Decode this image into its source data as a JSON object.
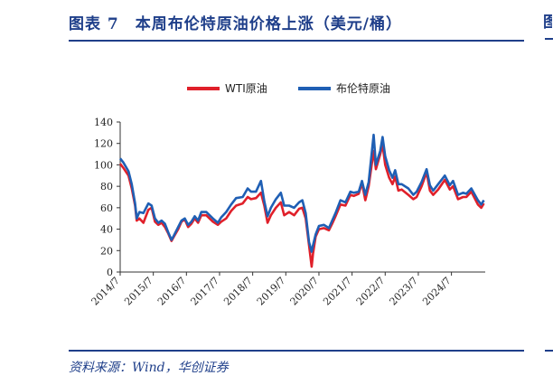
{
  "header": {
    "title": "图表 7　本周布伦特原油价格上涨（美元/桶）",
    "edge_glyph": "图"
  },
  "footer": {
    "source": "资料来源：Wind，华创证券"
  },
  "chart_data": {
    "type": "line",
    "title": "",
    "xlabel": "",
    "ylabel": "",
    "ylim": [
      0,
      140
    ],
    "yticks": [
      0,
      20,
      40,
      60,
      80,
      100,
      120,
      140
    ],
    "xlim": [
      2014.5,
      2025.52
    ],
    "xticks": [
      {
        "x": 2014.5,
        "label": "2014/7"
      },
      {
        "x": 2015.5,
        "label": "2015/7"
      },
      {
        "x": 2016.5,
        "label": "2016/7"
      },
      {
        "x": 2017.5,
        "label": "2017/7"
      },
      {
        "x": 2018.5,
        "label": "2018/7"
      },
      {
        "x": 2019.5,
        "label": "2019/7"
      },
      {
        "x": 2020.5,
        "label": "2020/7"
      },
      {
        "x": 2021.5,
        "label": "2021/7"
      },
      {
        "x": 2022.5,
        "label": "2022/7"
      },
      {
        "x": 2023.5,
        "label": "2023/7"
      },
      {
        "x": 2024.5,
        "label": "2024/7"
      }
    ],
    "grid": false,
    "legend_position": "top-center",
    "series": [
      {
        "name": "WTI原油",
        "color": "#e0202a",
        "points": [
          [
            2014.5,
            101
          ],
          [
            2014.6,
            97
          ],
          [
            2014.75,
            90
          ],
          [
            2014.85,
            78
          ],
          [
            2014.95,
            62
          ],
          [
            2015.0,
            48
          ],
          [
            2015.08,
            50
          ],
          [
            2015.2,
            46
          ],
          [
            2015.35,
            58
          ],
          [
            2015.45,
            60
          ],
          [
            2015.55,
            47
          ],
          [
            2015.65,
            44
          ],
          [
            2015.75,
            46
          ],
          [
            2015.85,
            42
          ],
          [
            2015.95,
            36
          ],
          [
            2016.05,
            29
          ],
          [
            2016.12,
            33
          ],
          [
            2016.25,
            40
          ],
          [
            2016.35,
            47
          ],
          [
            2016.45,
            49
          ],
          [
            2016.55,
            42
          ],
          [
            2016.65,
            45
          ],
          [
            2016.75,
            50
          ],
          [
            2016.85,
            46
          ],
          [
            2016.95,
            53
          ],
          [
            2017.1,
            53
          ],
          [
            2017.3,
            47
          ],
          [
            2017.45,
            44
          ],
          [
            2017.55,
            47
          ],
          [
            2017.7,
            50
          ],
          [
            2017.85,
            57
          ],
          [
            2018.0,
            62
          ],
          [
            2018.2,
            64
          ],
          [
            2018.35,
            70
          ],
          [
            2018.45,
            68
          ],
          [
            2018.6,
            69
          ],
          [
            2018.75,
            74
          ],
          [
            2018.85,
            62
          ],
          [
            2018.95,
            46
          ],
          [
            2019.05,
            53
          ],
          [
            2019.2,
            60
          ],
          [
            2019.35,
            65
          ],
          [
            2019.45,
            53
          ],
          [
            2019.6,
            56
          ],
          [
            2019.75,
            53
          ],
          [
            2019.9,
            59
          ],
          [
            2020.0,
            60
          ],
          [
            2020.1,
            50
          ],
          [
            2020.2,
            25
          ],
          [
            2020.28,
            5
          ],
          [
            2020.32,
            17
          ],
          [
            2020.4,
            33
          ],
          [
            2020.5,
            40
          ],
          [
            2020.65,
            41
          ],
          [
            2020.8,
            39
          ],
          [
            2020.9,
            45
          ],
          [
            2021.0,
            52
          ],
          [
            2021.15,
            63
          ],
          [
            2021.3,
            62
          ],
          [
            2021.45,
            72
          ],
          [
            2021.55,
            71
          ],
          [
            2021.7,
            73
          ],
          [
            2021.8,
            83
          ],
          [
            2021.9,
            67
          ],
          [
            2022.0,
            80
          ],
          [
            2022.15,
            113
          ],
          [
            2022.22,
            96
          ],
          [
            2022.35,
            110
          ],
          [
            2022.42,
            119
          ],
          [
            2022.5,
            100
          ],
          [
            2022.62,
            88
          ],
          [
            2022.72,
            82
          ],
          [
            2022.8,
            89
          ],
          [
            2022.9,
            76
          ],
          [
            2023.0,
            77
          ],
          [
            2023.2,
            72
          ],
          [
            2023.35,
            68
          ],
          [
            2023.45,
            70
          ],
          [
            2023.6,
            80
          ],
          [
            2023.75,
            93
          ],
          [
            2023.85,
            76
          ],
          [
            2023.95,
            72
          ],
          [
            2024.1,
            77
          ],
          [
            2024.3,
            86
          ],
          [
            2024.45,
            77
          ],
          [
            2024.55,
            80
          ],
          [
            2024.7,
            68
          ],
          [
            2024.85,
            70
          ],
          [
            2024.95,
            70
          ],
          [
            2025.1,
            75
          ],
          [
            2025.3,
            63
          ],
          [
            2025.4,
            60
          ],
          [
            2025.48,
            64
          ]
        ]
      },
      {
        "name": "布伦特原油",
        "color": "#1f5fb4",
        "points": [
          [
            2014.5,
            106
          ],
          [
            2014.6,
            102
          ],
          [
            2014.75,
            94
          ],
          [
            2014.85,
            82
          ],
          [
            2014.95,
            64
          ],
          [
            2015.0,
            50
          ],
          [
            2015.08,
            56
          ],
          [
            2015.2,
            55
          ],
          [
            2015.35,
            64
          ],
          [
            2015.45,
            62
          ],
          [
            2015.55,
            50
          ],
          [
            2015.65,
            46
          ],
          [
            2015.75,
            48
          ],
          [
            2015.85,
            45
          ],
          [
            2015.95,
            37
          ],
          [
            2016.05,
            30
          ],
          [
            2016.12,
            34
          ],
          [
            2016.25,
            42
          ],
          [
            2016.35,
            48
          ],
          [
            2016.45,
            50
          ],
          [
            2016.55,
            44
          ],
          [
            2016.65,
            47
          ],
          [
            2016.75,
            52
          ],
          [
            2016.85,
            48
          ],
          [
            2016.95,
            56
          ],
          [
            2017.1,
            56
          ],
          [
            2017.3,
            50
          ],
          [
            2017.45,
            46
          ],
          [
            2017.55,
            51
          ],
          [
            2017.7,
            56
          ],
          [
            2017.85,
            63
          ],
          [
            2018.0,
            69
          ],
          [
            2018.2,
            70
          ],
          [
            2018.35,
            78
          ],
          [
            2018.45,
            75
          ],
          [
            2018.6,
            75
          ],
          [
            2018.75,
            85
          ],
          [
            2018.85,
            66
          ],
          [
            2018.95,
            52
          ],
          [
            2019.05,
            60
          ],
          [
            2019.2,
            68
          ],
          [
            2019.35,
            74
          ],
          [
            2019.45,
            62
          ],
          [
            2019.6,
            62
          ],
          [
            2019.75,
            60
          ],
          [
            2019.9,
            65
          ],
          [
            2020.0,
            67
          ],
          [
            2020.1,
            55
          ],
          [
            2020.2,
            28
          ],
          [
            2020.28,
            19
          ],
          [
            2020.32,
            25
          ],
          [
            2020.4,
            35
          ],
          [
            2020.5,
            43
          ],
          [
            2020.65,
            44
          ],
          [
            2020.8,
            41
          ],
          [
            2020.9,
            48
          ],
          [
            2021.0,
            55
          ],
          [
            2021.15,
            67
          ],
          [
            2021.3,
            65
          ],
          [
            2021.45,
            75
          ],
          [
            2021.55,
            74
          ],
          [
            2021.7,
            75
          ],
          [
            2021.8,
            85
          ],
          [
            2021.9,
            72
          ],
          [
            2022.0,
            84
          ],
          [
            2022.15,
            128
          ],
          [
            2022.22,
            100
          ],
          [
            2022.35,
            113
          ],
          [
            2022.42,
            126
          ],
          [
            2022.5,
            108
          ],
          [
            2022.62,
            95
          ],
          [
            2022.72,
            88
          ],
          [
            2022.8,
            95
          ],
          [
            2022.9,
            82
          ],
          [
            2023.0,
            82
          ],
          [
            2023.2,
            78
          ],
          [
            2023.35,
            72
          ],
          [
            2023.45,
            75
          ],
          [
            2023.6,
            84
          ],
          [
            2023.75,
            96
          ],
          [
            2023.85,
            81
          ],
          [
            2023.95,
            76
          ],
          [
            2024.1,
            82
          ],
          [
            2024.3,
            90
          ],
          [
            2024.45,
            81
          ],
          [
            2024.55,
            85
          ],
          [
            2024.7,
            72
          ],
          [
            2024.85,
            74
          ],
          [
            2024.95,
            73
          ],
          [
            2025.1,
            78
          ],
          [
            2025.3,
            67
          ],
          [
            2025.4,
            63
          ],
          [
            2025.48,
            67
          ]
        ]
      }
    ]
  }
}
